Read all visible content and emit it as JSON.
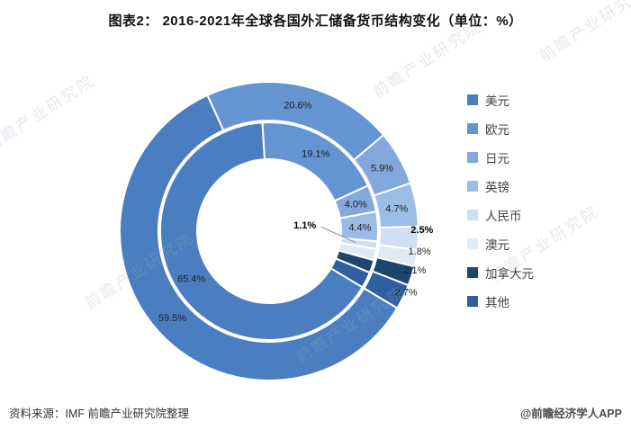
{
  "title": "图表2： 2016-2021年全球各国外汇储备货币结构变化（单位：%）",
  "source_note": "资料来源：IMF 前瞻产业研究院整理",
  "credit": "@前瞻经济学人APP",
  "watermark": "前瞻产业研究院",
  "chart_data": {
    "type": "donut",
    "title": "2016-2021年全球各国外汇储备货币结构变化",
    "unit": "%",
    "legend_position": "right",
    "start_angle_deg": 121,
    "categories": [
      "美元",
      "欧元",
      "日元",
      "英镑",
      "人民币",
      "澳元",
      "加拿大元",
      "其他"
    ],
    "category_ids": [
      "usd",
      "eur",
      "jpy",
      "gbp",
      "cny",
      "aud",
      "cad",
      "other"
    ],
    "colors": [
      "#4a7ec0",
      "#6494d2",
      "#82a8dd",
      "#9cbbe6",
      "#cedff3",
      "#dfeaf7",
      "#1c4670",
      "#2f5f9f"
    ],
    "highlight_category": "人民币",
    "series": [
      {
        "name": "2016",
        "ring": "inner",
        "values": [
          65.4,
          19.1,
          4.0,
          4.4,
          1.1,
          1.7,
          1.9,
          2.4
        ],
        "labels": [
          "65.4%",
          "19.1%",
          "4.0%",
          "4.4%",
          "1.1%",
          null,
          null,
          null
        ]
      },
      {
        "name": "2021",
        "ring": "outer",
        "values": [
          59.5,
          20.6,
          5.9,
          4.7,
          2.5,
          1.8,
          2.1,
          2.7
        ],
        "labels": [
          "59.5%",
          "20.6%",
          "5.9%",
          "4.7%",
          "2.5%",
          "1.8%",
          "2.1%",
          "2.7%"
        ]
      }
    ]
  }
}
